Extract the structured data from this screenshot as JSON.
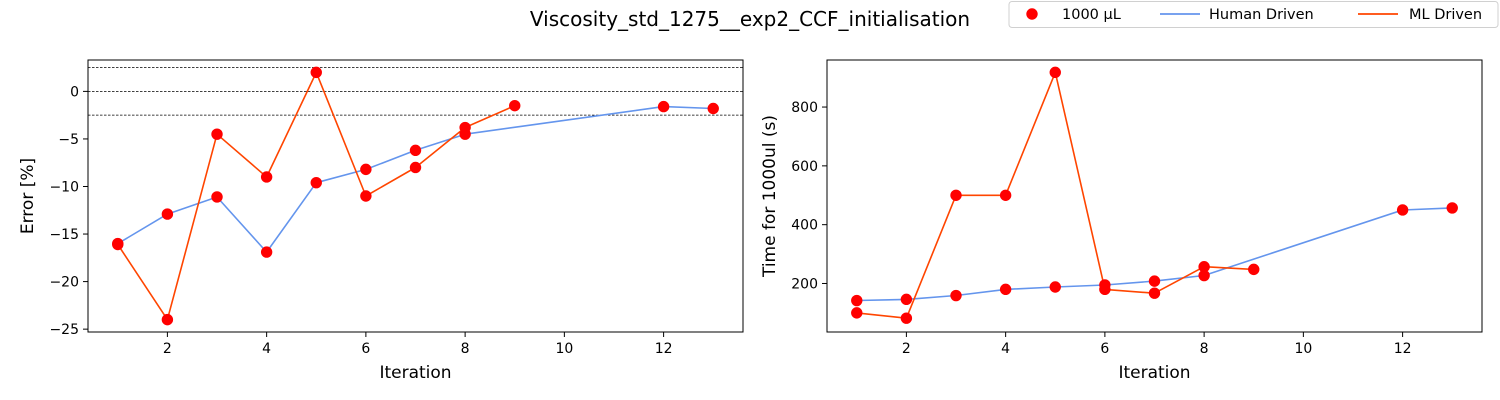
{
  "title": "Viscosity_std_1275__exp2_CCF_initialisation",
  "legend": {
    "placement": "top-right",
    "items": [
      {
        "label": "1000 µL",
        "kind": "marker",
        "color": "#ff0000"
      },
      {
        "label": "Human Driven",
        "kind": "line",
        "color": "#6495ed"
      },
      {
        "label": "ML Driven",
        "kind": "line",
        "color": "#ff4500"
      }
    ]
  },
  "colors": {
    "human": "#6495ed",
    "ml": "#ff4500",
    "marker": "#ff0000"
  },
  "chart_data": [
    {
      "type": "line",
      "xlabel": "Iteration",
      "ylabel": "Error [%]",
      "xlim": [
        0.4,
        13.6
      ],
      "ylim": [
        -25.3,
        3.3
      ],
      "xticks": [
        2,
        4,
        6,
        8,
        10,
        12
      ],
      "yticks": [
        -25,
        -20,
        -15,
        -10,
        -5,
        0
      ],
      "reference_lines": [
        2.5,
        0,
        -2.5
      ],
      "grid": false,
      "series": [
        {
          "name": "Human Driven",
          "x": [
            1,
            2,
            3,
            4,
            5,
            6,
            7,
            8,
            12,
            13
          ],
          "y": [
            -16.0,
            -12.9,
            -11.1,
            -16.9,
            -9.6,
            -8.2,
            -6.2,
            -4.5,
            -1.6,
            -1.8
          ]
        },
        {
          "name": "ML Driven",
          "x": [
            1,
            2,
            3,
            4,
            5,
            6,
            7,
            8,
            9
          ],
          "y": [
            -16.1,
            -24.0,
            -4.5,
            -9.0,
            2.0,
            -11.0,
            -8.0,
            -3.8,
            -1.5
          ]
        }
      ]
    },
    {
      "type": "line",
      "xlabel": "Iteration",
      "ylabel": "Time for 1000ul (s)",
      "xlim": [
        0.4,
        13.6
      ],
      "ylim": [
        35,
        960
      ],
      "xticks": [
        2,
        4,
        6,
        8,
        10,
        12
      ],
      "yticks": [
        200,
        400,
        600,
        800
      ],
      "grid": false,
      "series": [
        {
          "name": "Human Driven",
          "x": [
            1,
            2,
            3,
            4,
            5,
            6,
            7,
            8,
            12,
            13
          ],
          "y": [
            142,
            146,
            159,
            180,
            188,
            195,
            208,
            227,
            450,
            457
          ]
        },
        {
          "name": "ML Driven",
          "x": [
            1,
            2,
            3,
            4,
            5,
            6,
            7,
            8,
            9
          ],
          "y": [
            100,
            82,
            500,
            500,
            918,
            180,
            167,
            257,
            248
          ]
        }
      ]
    }
  ]
}
